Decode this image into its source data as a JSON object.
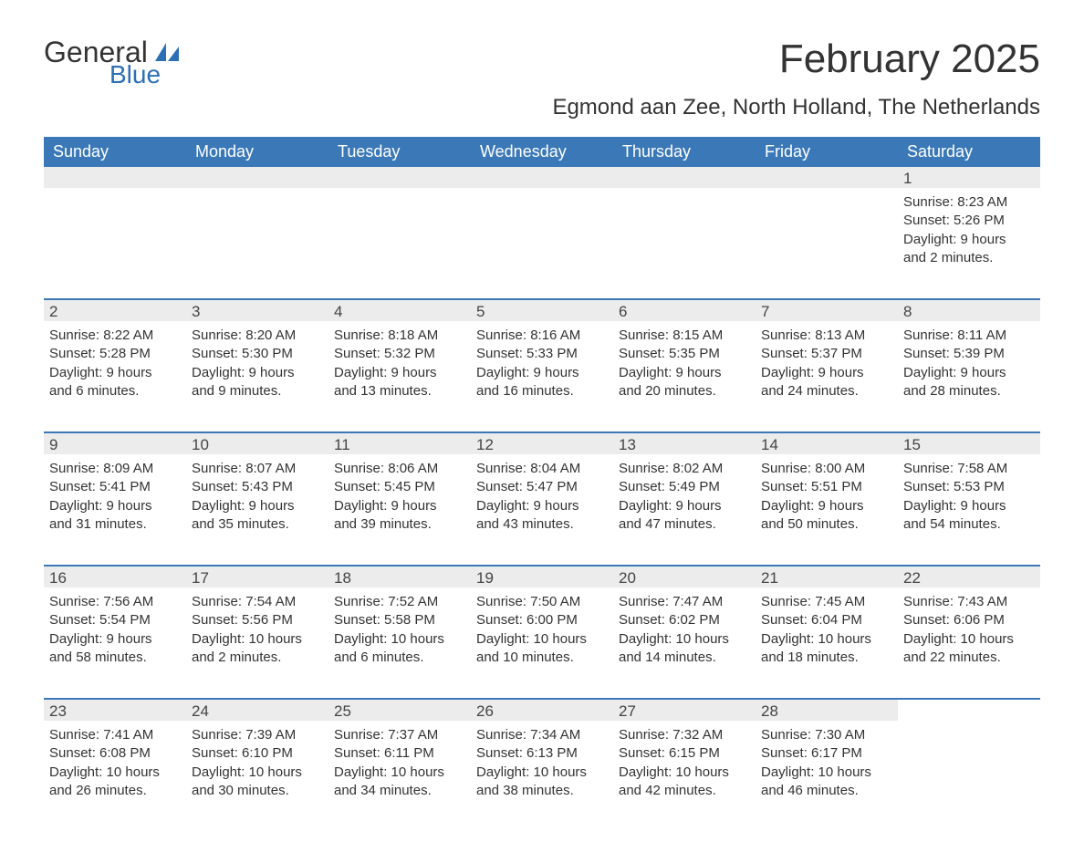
{
  "logo": {
    "text_general": "General",
    "text_blue": "Blue"
  },
  "title": {
    "month": "February 2025",
    "location": "Egmond aan Zee, North Holland, The Netherlands"
  },
  "colors": {
    "header_bg": "#3b78b7",
    "header_fg": "#ffffff",
    "daynum_bg": "#ececec",
    "text": "#333333",
    "logo_blue": "#2d6fb5",
    "rule": "#3b78b7",
    "page_bg": "#ffffff"
  },
  "fonts": {
    "title_month_size": 44,
    "title_location_size": 24,
    "weekday_size": 18,
    "daynum_size": 17,
    "body_size": 15
  },
  "weekdays": [
    "Sunday",
    "Monday",
    "Tuesday",
    "Wednesday",
    "Thursday",
    "Friday",
    "Saturday"
  ],
  "weeks": [
    [
      {
        "empty": true
      },
      {
        "empty": true
      },
      {
        "empty": true
      },
      {
        "empty": true
      },
      {
        "empty": true
      },
      {
        "empty": true
      },
      {
        "day": "1",
        "sunrise": "Sunrise: 8:23 AM",
        "sunset": "Sunset: 5:26 PM",
        "daylight1": "Daylight: 9 hours",
        "daylight2": "and 2 minutes."
      }
    ],
    [
      {
        "day": "2",
        "sunrise": "Sunrise: 8:22 AM",
        "sunset": "Sunset: 5:28 PM",
        "daylight1": "Daylight: 9 hours",
        "daylight2": "and 6 minutes."
      },
      {
        "day": "3",
        "sunrise": "Sunrise: 8:20 AM",
        "sunset": "Sunset: 5:30 PM",
        "daylight1": "Daylight: 9 hours",
        "daylight2": "and 9 minutes."
      },
      {
        "day": "4",
        "sunrise": "Sunrise: 8:18 AM",
        "sunset": "Sunset: 5:32 PM",
        "daylight1": "Daylight: 9 hours",
        "daylight2": "and 13 minutes."
      },
      {
        "day": "5",
        "sunrise": "Sunrise: 8:16 AM",
        "sunset": "Sunset: 5:33 PM",
        "daylight1": "Daylight: 9 hours",
        "daylight2": "and 16 minutes."
      },
      {
        "day": "6",
        "sunrise": "Sunrise: 8:15 AM",
        "sunset": "Sunset: 5:35 PM",
        "daylight1": "Daylight: 9 hours",
        "daylight2": "and 20 minutes."
      },
      {
        "day": "7",
        "sunrise": "Sunrise: 8:13 AM",
        "sunset": "Sunset: 5:37 PM",
        "daylight1": "Daylight: 9 hours",
        "daylight2": "and 24 minutes."
      },
      {
        "day": "8",
        "sunrise": "Sunrise: 8:11 AM",
        "sunset": "Sunset: 5:39 PM",
        "daylight1": "Daylight: 9 hours",
        "daylight2": "and 28 minutes."
      }
    ],
    [
      {
        "day": "9",
        "sunrise": "Sunrise: 8:09 AM",
        "sunset": "Sunset: 5:41 PM",
        "daylight1": "Daylight: 9 hours",
        "daylight2": "and 31 minutes."
      },
      {
        "day": "10",
        "sunrise": "Sunrise: 8:07 AM",
        "sunset": "Sunset: 5:43 PM",
        "daylight1": "Daylight: 9 hours",
        "daylight2": "and 35 minutes."
      },
      {
        "day": "11",
        "sunrise": "Sunrise: 8:06 AM",
        "sunset": "Sunset: 5:45 PM",
        "daylight1": "Daylight: 9 hours",
        "daylight2": "and 39 minutes."
      },
      {
        "day": "12",
        "sunrise": "Sunrise: 8:04 AM",
        "sunset": "Sunset: 5:47 PM",
        "daylight1": "Daylight: 9 hours",
        "daylight2": "and 43 minutes."
      },
      {
        "day": "13",
        "sunrise": "Sunrise: 8:02 AM",
        "sunset": "Sunset: 5:49 PM",
        "daylight1": "Daylight: 9 hours",
        "daylight2": "and 47 minutes."
      },
      {
        "day": "14",
        "sunrise": "Sunrise: 8:00 AM",
        "sunset": "Sunset: 5:51 PM",
        "daylight1": "Daylight: 9 hours",
        "daylight2": "and 50 minutes."
      },
      {
        "day": "15",
        "sunrise": "Sunrise: 7:58 AM",
        "sunset": "Sunset: 5:53 PM",
        "daylight1": "Daylight: 9 hours",
        "daylight2": "and 54 minutes."
      }
    ],
    [
      {
        "day": "16",
        "sunrise": "Sunrise: 7:56 AM",
        "sunset": "Sunset: 5:54 PM",
        "daylight1": "Daylight: 9 hours",
        "daylight2": "and 58 minutes."
      },
      {
        "day": "17",
        "sunrise": "Sunrise: 7:54 AM",
        "sunset": "Sunset: 5:56 PM",
        "daylight1": "Daylight: 10 hours",
        "daylight2": "and 2 minutes."
      },
      {
        "day": "18",
        "sunrise": "Sunrise: 7:52 AM",
        "sunset": "Sunset: 5:58 PM",
        "daylight1": "Daylight: 10 hours",
        "daylight2": "and 6 minutes."
      },
      {
        "day": "19",
        "sunrise": "Sunrise: 7:50 AM",
        "sunset": "Sunset: 6:00 PM",
        "daylight1": "Daylight: 10 hours",
        "daylight2": "and 10 minutes."
      },
      {
        "day": "20",
        "sunrise": "Sunrise: 7:47 AM",
        "sunset": "Sunset: 6:02 PM",
        "daylight1": "Daylight: 10 hours",
        "daylight2": "and 14 minutes."
      },
      {
        "day": "21",
        "sunrise": "Sunrise: 7:45 AM",
        "sunset": "Sunset: 6:04 PM",
        "daylight1": "Daylight: 10 hours",
        "daylight2": "and 18 minutes."
      },
      {
        "day": "22",
        "sunrise": "Sunrise: 7:43 AM",
        "sunset": "Sunset: 6:06 PM",
        "daylight1": "Daylight: 10 hours",
        "daylight2": "and 22 minutes."
      }
    ],
    [
      {
        "day": "23",
        "sunrise": "Sunrise: 7:41 AM",
        "sunset": "Sunset: 6:08 PM",
        "daylight1": "Daylight: 10 hours",
        "daylight2": "and 26 minutes."
      },
      {
        "day": "24",
        "sunrise": "Sunrise: 7:39 AM",
        "sunset": "Sunset: 6:10 PM",
        "daylight1": "Daylight: 10 hours",
        "daylight2": "and 30 minutes."
      },
      {
        "day": "25",
        "sunrise": "Sunrise: 7:37 AM",
        "sunset": "Sunset: 6:11 PM",
        "daylight1": "Daylight: 10 hours",
        "daylight2": "and 34 minutes."
      },
      {
        "day": "26",
        "sunrise": "Sunrise: 7:34 AM",
        "sunset": "Sunset: 6:13 PM",
        "daylight1": "Daylight: 10 hours",
        "daylight2": "and 38 minutes."
      },
      {
        "day": "27",
        "sunrise": "Sunrise: 7:32 AM",
        "sunset": "Sunset: 6:15 PM",
        "daylight1": "Daylight: 10 hours",
        "daylight2": "and 42 minutes."
      },
      {
        "day": "28",
        "sunrise": "Sunrise: 7:30 AM",
        "sunset": "Sunset: 6:17 PM",
        "daylight1": "Daylight: 10 hours",
        "daylight2": "and 46 minutes."
      },
      {
        "empty": true,
        "noBg": true
      }
    ]
  ]
}
